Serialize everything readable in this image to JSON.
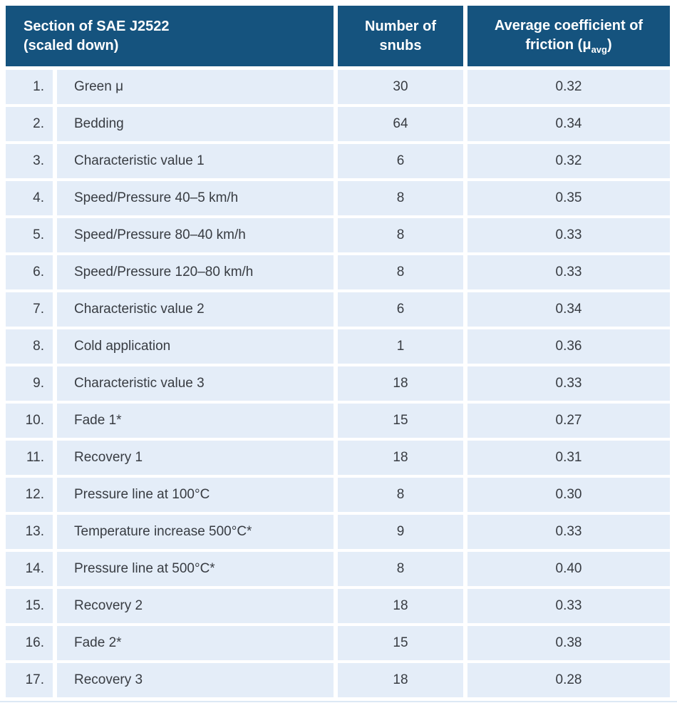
{
  "colors": {
    "header_bg": "#15537E",
    "header_text": "#FFFFFF",
    "row_bg": "#E4EDF8",
    "body_text": "#383C42",
    "page_bg": "#FFFFFF",
    "bottom_rule": "#DCE8F5"
  },
  "table": {
    "header": {
      "col1_line1": "Section of SAE J2522",
      "col1_line2": "(scaled down)",
      "col2_line1": "Number of",
      "col2_line2": "snubs",
      "col3_line1": "Average coefficient of",
      "col3_line2_prefix": "friction (μ",
      "col3_subscript": "avg",
      "col3_line2_suffix": ")"
    },
    "rows": [
      {
        "index": "1.",
        "section": "Green μ",
        "snubs": "30",
        "mu_avg": "0.32"
      },
      {
        "index": "2.",
        "section": "Bedding",
        "snubs": "64",
        "mu_avg": "0.34"
      },
      {
        "index": "3.",
        "section": "Characteristic value 1",
        "snubs": "6",
        "mu_avg": "0.32"
      },
      {
        "index": "4.",
        "section": "Speed/Pressure 40–5 km/h",
        "snubs": "8",
        "mu_avg": "0.35"
      },
      {
        "index": "5.",
        "section": "Speed/Pressure 80–40 km/h",
        "snubs": "8",
        "mu_avg": "0.33"
      },
      {
        "index": "6.",
        "section": "Speed/Pressure 120–80 km/h",
        "snubs": "8",
        "mu_avg": "0.33"
      },
      {
        "index": "7.",
        "section": "Characteristic value 2",
        "snubs": "6",
        "mu_avg": "0.34"
      },
      {
        "index": "8.",
        "section": "Cold application",
        "snubs": "1",
        "mu_avg": "0.36"
      },
      {
        "index": "9.",
        "section": "Characteristic value 3",
        "snubs": "18",
        "mu_avg": "0.33"
      },
      {
        "index": "10.",
        "section": "Fade 1*",
        "snubs": "15",
        "mu_avg": "0.27"
      },
      {
        "index": "11.",
        "section": "Recovery 1",
        "snubs": "18",
        "mu_avg": "0.31"
      },
      {
        "index": "12.",
        "section": "Pressure line at 100°C",
        "snubs": "8",
        "mu_avg": "0.30"
      },
      {
        "index": "13.",
        "section": "Temperature increase 500°C*",
        "snubs": "9",
        "mu_avg": "0.33"
      },
      {
        "index": "14.",
        "section": "Pressure line at 500°C*",
        "snubs": "8",
        "mu_avg": "0.40"
      },
      {
        "index": "15.",
        "section": "Recovery 2",
        "snubs": "18",
        "mu_avg": "0.33"
      },
      {
        "index": "16.",
        "section": "Fade 2*",
        "snubs": "15",
        "mu_avg": "0.38"
      },
      {
        "index": "17.",
        "section": "Recovery 3",
        "snubs": "18",
        "mu_avg": "0.28"
      }
    ]
  },
  "chart_data": {
    "type": "table",
    "title": "Section of SAE J2522 (scaled down)",
    "columns": [
      "#",
      "Section of SAE J2522 (scaled down)",
      "Number of snubs",
      "Average coefficient of friction (μavg)"
    ],
    "rows": [
      [
        "1.",
        "Green μ",
        30,
        0.32
      ],
      [
        "2.",
        "Bedding",
        64,
        0.34
      ],
      [
        "3.",
        "Characteristic value 1",
        6,
        0.32
      ],
      [
        "4.",
        "Speed/Pressure 40–5 km/h",
        8,
        0.35
      ],
      [
        "5.",
        "Speed/Pressure 80–40 km/h",
        8,
        0.33
      ],
      [
        "6.",
        "Speed/Pressure 120–80 km/h",
        8,
        0.33
      ],
      [
        "7.",
        "Characteristic value 2",
        6,
        0.34
      ],
      [
        "8.",
        "Cold application",
        1,
        0.36
      ],
      [
        "9.",
        "Characteristic value 3",
        18,
        0.33
      ],
      [
        "10.",
        "Fade 1*",
        15,
        0.27
      ],
      [
        "11.",
        "Recovery 1",
        18,
        0.31
      ],
      [
        "12.",
        "Pressure line at 100°C",
        8,
        0.3
      ],
      [
        "13.",
        "Temperature increase 500°C*",
        9,
        0.33
      ],
      [
        "14.",
        "Pressure line at 500°C*",
        8,
        0.4
      ],
      [
        "15.",
        "Recovery 2",
        18,
        0.33
      ],
      [
        "16.",
        "Fade 2*",
        15,
        0.38
      ],
      [
        "17.",
        "Recovery 3",
        18,
        0.28
      ]
    ]
  }
}
